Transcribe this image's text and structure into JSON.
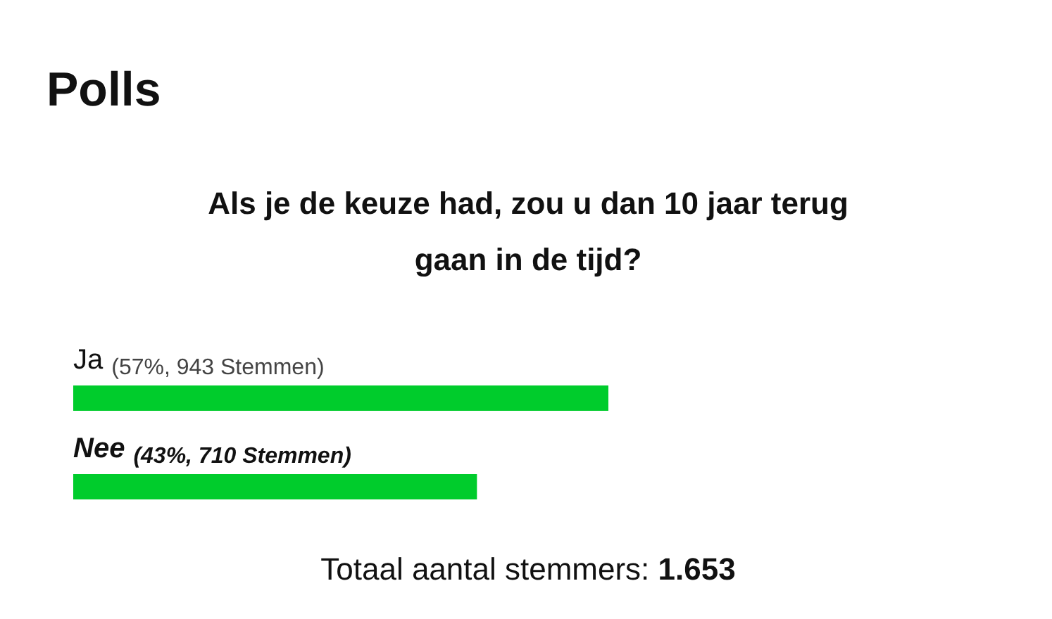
{
  "chart_data": {
    "type": "bar",
    "orientation": "horizontal",
    "title": "Polls",
    "subtitle": "Als je de keuze had, zou u dan 10 jaar terug gaan in de tijd?",
    "categories": [
      "Ja",
      "Nee"
    ],
    "values": [
      57,
      43
    ],
    "value_labels": [
      "(57%, 943 Stemmen)",
      "(43%, 710 Stemmen)"
    ],
    "color": "#00cc2c",
    "annotations": [
      "Totaal aantal stemmers: 1.653"
    ]
  }
}
